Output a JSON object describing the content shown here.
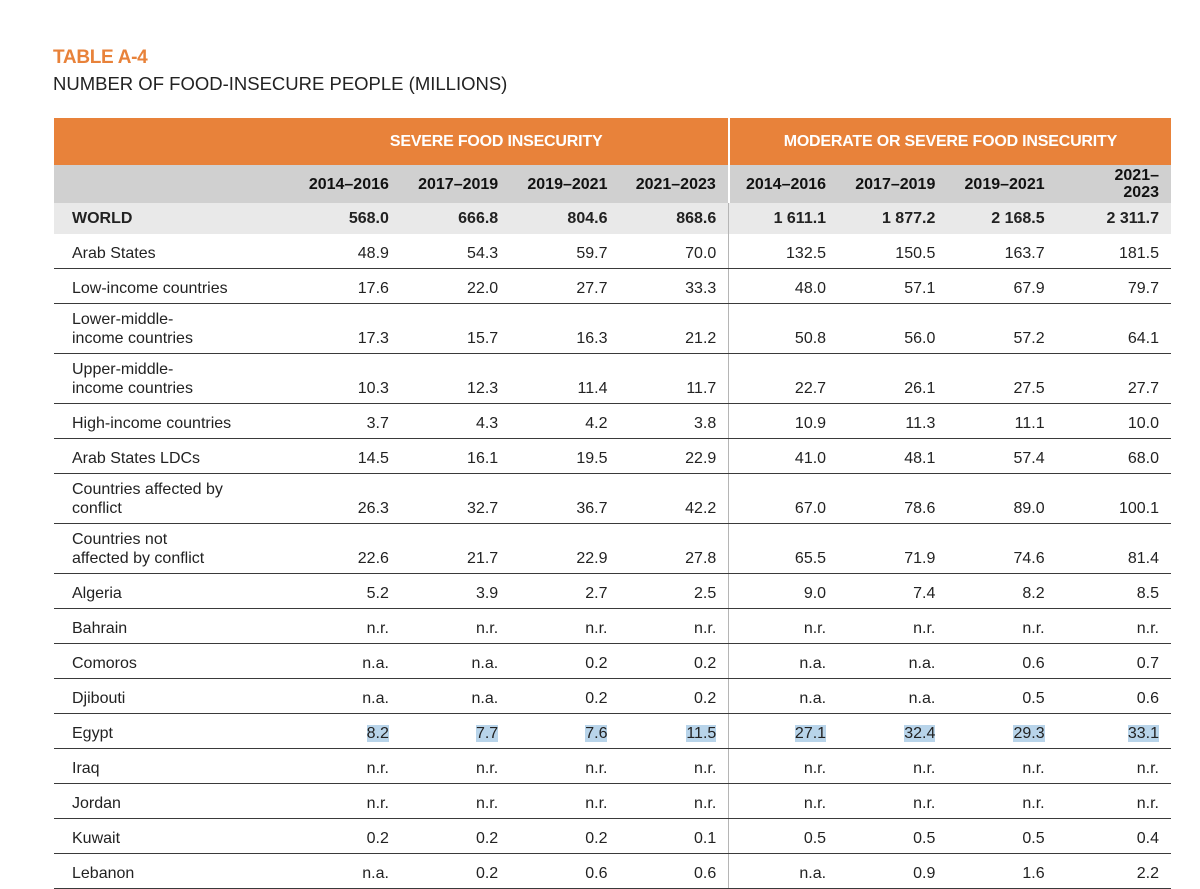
{
  "header": {
    "table_label": "TABLE A-4",
    "title": "NUMBER OF FOOD-INSECURE PEOPLE (MILLIONS)"
  },
  "table": {
    "group_headers": [
      "SEVERE FOOD INSECURITY",
      "MODERATE OR SEVERE FOOD INSECURITY"
    ],
    "columns": [
      "2014–2016",
      "2017–2019",
      "2019–2021",
      "2021–2023",
      "2014–2016",
      "2017–2019",
      "2019–2021",
      "2021–\n2023"
    ],
    "rows": [
      {
        "name": "WORLD",
        "values": [
          "568.0",
          "666.8",
          "804.6",
          "868.6",
          "1 611.1",
          "1 877.2",
          "2 168.5",
          "2 311.7"
        ]
      },
      {
        "name": "Arab States",
        "values": [
          "48.9",
          "54.3",
          "59.7",
          "70.0",
          "132.5",
          "150.5",
          "163.7",
          "181.5"
        ]
      },
      {
        "name": "Low-income countries",
        "values": [
          "17.6",
          "22.0",
          "27.7",
          "33.3",
          "48.0",
          "57.1",
          "67.9",
          "79.7"
        ]
      },
      {
        "name": "Lower-middle-income countries",
        "values": [
          "17.3",
          "15.7",
          "16.3",
          "21.2",
          "50.8",
          "56.0",
          "57.2",
          "64.1"
        ]
      },
      {
        "name": "Upper-middle-income countries",
        "values": [
          "10.3",
          "12.3",
          "11.4",
          "11.7",
          "22.7",
          "26.1",
          "27.5",
          "27.7"
        ]
      },
      {
        "name": "High-income countries",
        "values": [
          "3.7",
          "4.3",
          "4.2",
          "3.8",
          "10.9",
          "11.3",
          "11.1",
          "10.0"
        ]
      },
      {
        "name": "Arab States LDCs",
        "values": [
          "14.5",
          "16.1",
          "19.5",
          "22.9",
          "41.0",
          "48.1",
          "57.4",
          "68.0"
        ]
      },
      {
        "name": "Countries affected by conflict",
        "values": [
          "26.3",
          "32.7",
          "36.7",
          "42.2",
          "67.0",
          "78.6",
          "89.0",
          "100.1"
        ]
      },
      {
        "name": "Countries not affected by conflict",
        "values": [
          "22.6",
          "21.7",
          "22.9",
          "27.8",
          "65.5",
          "71.9",
          "74.6",
          "81.4"
        ]
      },
      {
        "name": "Algeria",
        "values": [
          "5.2",
          "3.9",
          "2.7",
          "2.5",
          "9.0",
          "7.4",
          "8.2",
          "8.5"
        ]
      },
      {
        "name": "Bahrain",
        "values": [
          "n.r.",
          "n.r.",
          "n.r.",
          "n.r.",
          "n.r.",
          "n.r.",
          "n.r.",
          "n.r."
        ]
      },
      {
        "name": "Comoros",
        "values": [
          "n.a.",
          "n.a.",
          "0.2",
          "0.2",
          "n.a.",
          "n.a.",
          "0.6",
          "0.7"
        ]
      },
      {
        "name": "Djibouti",
        "values": [
          "n.a.",
          "n.a.",
          "0.2",
          "0.2",
          "n.a.",
          "n.a.",
          "0.5",
          "0.6"
        ]
      },
      {
        "name": "Egypt",
        "values": [
          "8.2",
          "7.7",
          "7.6",
          "11.5",
          "27.1",
          "32.4",
          "29.3",
          "33.1"
        ]
      },
      {
        "name": "Iraq",
        "values": [
          "n.r.",
          "n.r.",
          "n.r.",
          "n.r.",
          "n.r.",
          "n.r.",
          "n.r.",
          "n.r."
        ]
      },
      {
        "name": "Jordan",
        "values": [
          "n.r.",
          "n.r.",
          "n.r.",
          "n.r.",
          "n.r.",
          "n.r.",
          "n.r.",
          "n.r."
        ]
      },
      {
        "name": "Kuwait",
        "values": [
          "0.2",
          "0.2",
          "0.2",
          "0.1",
          "0.5",
          "0.5",
          "0.5",
          "0.4"
        ]
      },
      {
        "name": "Lebanon",
        "values": [
          "n.a.",
          "0.2",
          "0.6",
          "0.6",
          "n.a.",
          "0.9",
          "1.6",
          "2.2"
        ]
      }
    ]
  }
}
